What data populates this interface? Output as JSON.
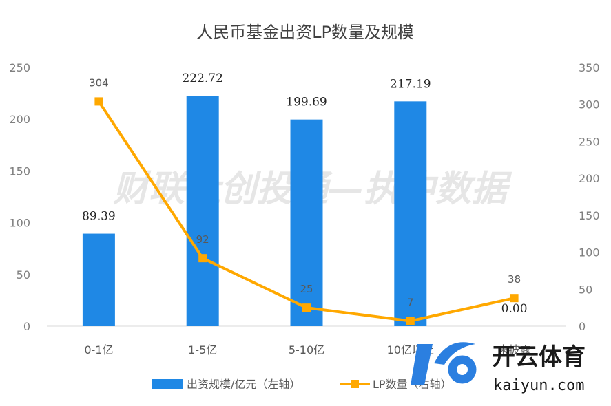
{
  "chart_data": {
    "type": "bar+line",
    "title": "人民币基金出资LP数量及规模",
    "categories": [
      "0-1亿",
      "1-5亿",
      "5-10亿",
      "10亿以上",
      "未披露"
    ],
    "series": [
      {
        "name": "出资规模/亿元（左轴）",
        "type": "bar",
        "axis": "left",
        "color": "#1f88e5",
        "values": [
          89.39,
          222.72,
          199.69,
          217.19,
          0.0
        ],
        "labels": [
          "89.39",
          "222.72",
          "199.69",
          "217.19",
          "0.00"
        ]
      },
      {
        "name": "LP数量（右轴）",
        "type": "line",
        "axis": "right",
        "color": "#ffa800",
        "values": [
          304,
          92,
          25,
          7,
          38
        ],
        "labels": [
          "304",
          "92",
          "25",
          "7",
          "38"
        ]
      }
    ],
    "y_left": {
      "min": 0,
      "max": 250,
      "ticks": [
        "0",
        "50",
        "100",
        "150",
        "200",
        "250"
      ]
    },
    "y_right": {
      "min": 0,
      "max": 350,
      "ticks": [
        "0",
        "50",
        "100",
        "150",
        "200",
        "250",
        "300",
        "350"
      ]
    },
    "grid": false,
    "legend_position": "bottom"
  },
  "watermark": "财联社创投通—执中数据",
  "brand": {
    "cn": "开云体育",
    "en": "kaiyun.com"
  }
}
